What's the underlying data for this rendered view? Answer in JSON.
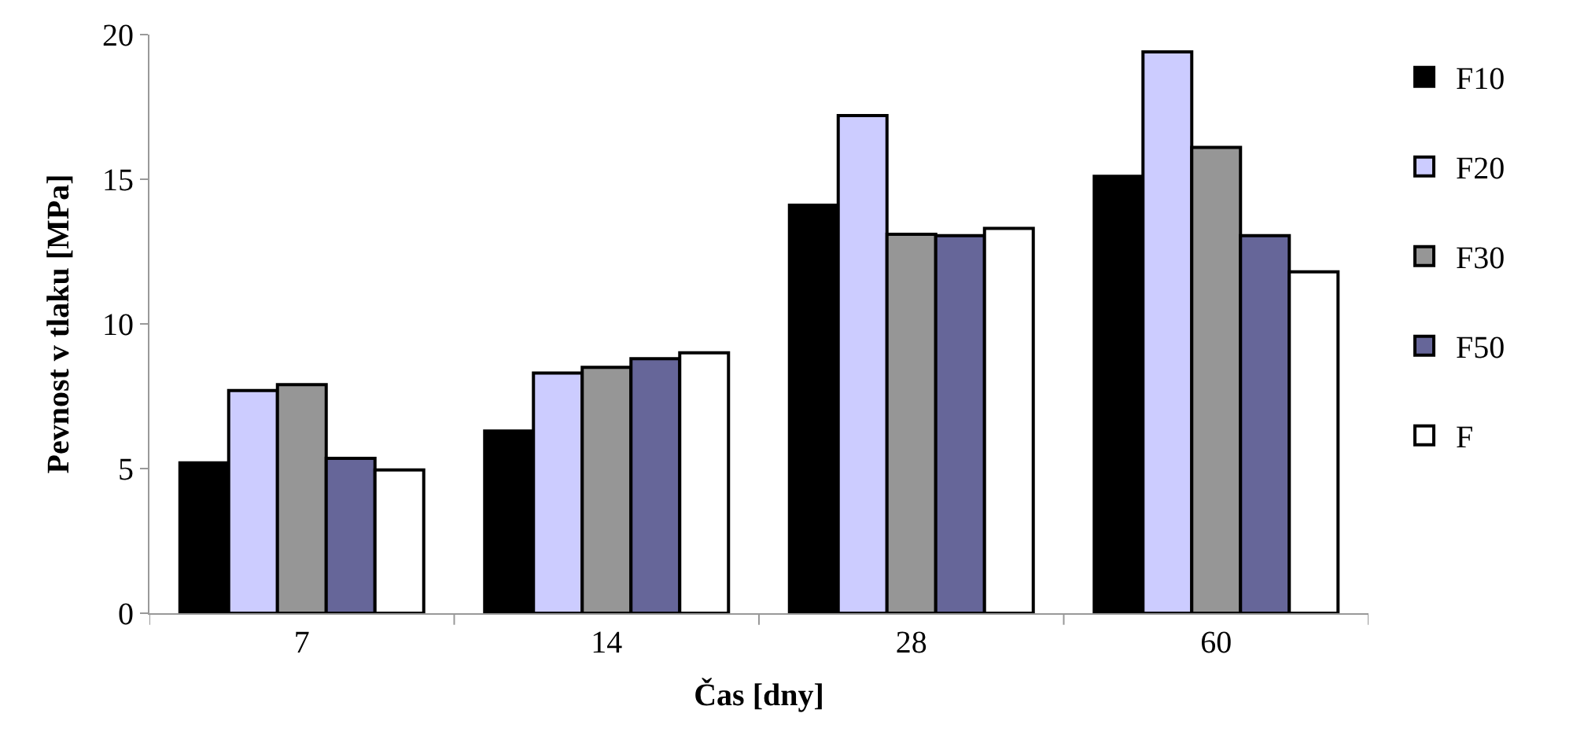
{
  "chart_data": {
    "type": "bar",
    "xlabel": "Čas [dny]",
    "ylabel": "Pevnost v tlaku [MPa]",
    "categories": [
      "7",
      "14",
      "28",
      "60"
    ],
    "series": [
      {
        "name": "F10",
        "color": "#000000",
        "values": [
          5.2,
          6.3,
          14.1,
          15.1
        ]
      },
      {
        "name": "F20",
        "color": "#ccccff",
        "values": [
          7.7,
          8.3,
          17.2,
          19.4
        ]
      },
      {
        "name": "F30",
        "color": "#969696",
        "values": [
          7.9,
          8.5,
          13.1,
          16.1
        ]
      },
      {
        "name": "F50",
        "color": "#666699",
        "values": [
          5.35,
          8.8,
          13.05,
          13.05
        ]
      },
      {
        "name": "F",
        "color": "#ffffff",
        "values": [
          4.95,
          9.0,
          13.3,
          11.8
        ]
      }
    ],
    "ylim": [
      0,
      20
    ],
    "yticks": [
      0,
      5,
      10,
      15,
      20
    ],
    "legend": "right"
  }
}
